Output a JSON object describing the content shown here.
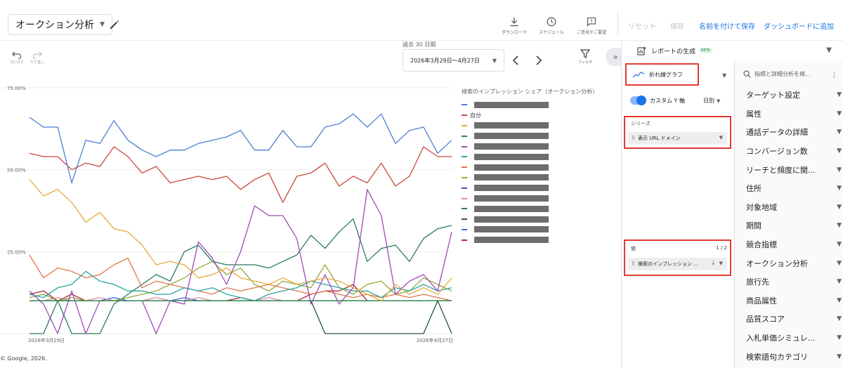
{
  "header": {
    "report_title": "オークション分析",
    "tools": [
      {
        "icon": "download-icon",
        "label": "ダウンロード"
      },
      {
        "icon": "schedule-icon",
        "label": "スケジュール"
      },
      {
        "icon": "feedback-icon",
        "label": "ご意見やご要望"
      }
    ],
    "actions": {
      "reset": "リセット",
      "save": "保存",
      "save_as": "名前を付けて保存",
      "add_to_dashboard": "ダッシュボードに追加"
    }
  },
  "toolbar": {
    "undo": "元に戻す",
    "redo": "やり直し",
    "date_caption": "過去 30 日間",
    "date_range": "2026年3月29日〜4月27日",
    "filter": "フィルタ"
  },
  "chart_data": {
    "type": "line",
    "title": "",
    "legend_title": "検索のインプレッション シェア（オークション分析）",
    "y_ticks": [
      "75.00%",
      "50.00%",
      "25.00%"
    ],
    "ylim": [
      0,
      75
    ],
    "x_start_label": "2026年3月29日",
    "x_end_label": "2026年4月27日",
    "series": [
      {
        "color": "#4a7fd4",
        "name_redacted": true,
        "values": [
          66,
          63,
          63,
          46,
          59,
          58,
          65,
          59,
          56,
          54,
          56,
          56,
          58,
          59,
          60,
          62,
          56,
          56,
          62,
          57,
          57,
          63,
          64,
          67,
          63,
          67,
          58,
          62,
          63,
          55,
          59
        ]
      },
      {
        "color": "#c9473a",
        "name": "自分",
        "values": [
          55,
          54,
          54,
          50,
          52,
          51,
          57,
          54,
          49,
          51,
          46,
          47,
          48,
          47,
          48,
          44,
          47,
          49,
          40,
          48,
          49,
          52,
          45,
          48,
          46,
          52,
          45,
          48,
          57,
          54,
          54
        ]
      },
      {
        "color": "#e8a83a",
        "name_redacted": true,
        "values": [
          47,
          42,
          44,
          40,
          34,
          37,
          32,
          31,
          27,
          21,
          22,
          21,
          17,
          18,
          20,
          17,
          16,
          15,
          17,
          15,
          16,
          17,
          16,
          14,
          12,
          10,
          15,
          12,
          14,
          12,
          17
        ]
      },
      {
        "color": "#2c8a4a",
        "name_redacted": true,
        "values": [
          10,
          10,
          10,
          10,
          10,
          10,
          10,
          10,
          10,
          10,
          10,
          10,
          10,
          10,
          10,
          10,
          10,
          10,
          10,
          10,
          10,
          10,
          10,
          10,
          10,
          10,
          10,
          10,
          10,
          10,
          10
        ]
      },
      {
        "color": "#a149b8",
        "name_redacted": true,
        "values": [
          13,
          9,
          0,
          13,
          0,
          10,
          10,
          10,
          10,
          0,
          10,
          9,
          28,
          23,
          15,
          25,
          39,
          36,
          36,
          29,
          9,
          18,
          9,
          14,
          44,
          36,
          12,
          16,
          18,
          13,
          31
        ]
      },
      {
        "color": "#28a5a0",
        "name_redacted": true,
        "values": [
          12,
          11,
          14,
          15,
          19,
          16,
          15,
          13,
          13,
          12,
          12,
          14,
          13,
          14,
          12,
          11,
          10,
          12,
          13,
          14,
          16,
          15,
          14,
          13,
          13,
          11,
          14,
          13,
          15,
          13,
          14
        ]
      },
      {
        "color": "#e0764c",
        "name_redacted": true,
        "values": [
          24,
          17,
          20,
          19,
          17,
          18,
          21,
          23,
          14,
          16,
          15,
          14,
          13,
          12,
          14,
          13,
          14,
          15,
          14,
          13,
          12,
          13,
          12,
          11,
          12,
          11,
          12,
          11,
          12,
          11,
          10
        ]
      },
      {
        "color": "#93a83a",
        "name_redacted": true,
        "values": [
          11,
          12,
          10,
          11,
          10,
          10,
          10,
          11,
          12,
          13,
          15,
          17,
          20,
          22,
          18,
          20,
          15,
          13,
          16,
          15,
          14,
          21,
          14,
          12,
          15,
          16,
          12,
          13,
          17,
          15,
          13
        ]
      },
      {
        "color": "#4b4fa8",
        "name_redacted": true,
        "values": [
          10,
          10,
          10,
          10,
          10,
          10,
          10,
          10,
          10,
          10,
          10,
          10,
          10,
          10,
          10,
          10,
          10,
          10,
          10,
          10,
          10,
          10,
          10,
          10,
          10,
          10,
          10,
          10,
          10,
          10,
          10
        ]
      },
      {
        "color": "#e08aa8",
        "name_redacted": true,
        "values": [
          10,
          10,
          11,
          10,
          10,
          11,
          10,
          10,
          10,
          11,
          10,
          10,
          11,
          10,
          10,
          10,
          10,
          11,
          10,
          10,
          10,
          10,
          10,
          10,
          10,
          10,
          10,
          10,
          10,
          10,
          10
        ]
      },
      {
        "color": "#2a7a5a",
        "name_redacted": true,
        "values": [
          0,
          0,
          10,
          0,
          0,
          0,
          9,
          12,
          15,
          18,
          16,
          25,
          27,
          22,
          21,
          21,
          21,
          20,
          22,
          24,
          30,
          26,
          31,
          35,
          22,
          26,
          27,
          22,
          29,
          32,
          33
        ]
      },
      {
        "color": "#1e5a3a",
        "name_redacted": true,
        "values": [
          10,
          10,
          10,
          10,
          10,
          10,
          10,
          10,
          10,
          10,
          10,
          10,
          10,
          10,
          10,
          10,
          10,
          10,
          10,
          10,
          10,
          0,
          0,
          0,
          0,
          0,
          0,
          0,
          0,
          10,
          0
        ]
      },
      {
        "color": "#3a6ad8",
        "name_redacted": true,
        "values": [
          10,
          10,
          10,
          10,
          10,
          10,
          11,
          10,
          10,
          10,
          10,
          11,
          10,
          10,
          10,
          10,
          10,
          10,
          10,
          10,
          10,
          10,
          10,
          10,
          10,
          10,
          10,
          10,
          10,
          10,
          10
        ]
      },
      {
        "color": "#a82a3a",
        "name_redacted": true,
        "values": [
          12,
          13,
          10,
          12,
          10,
          10,
          10,
          10,
          10,
          10,
          10,
          10,
          10,
          10,
          10,
          11,
          10,
          10,
          10,
          10,
          12,
          13,
          13,
          15,
          10,
          10,
          10,
          10,
          10,
          10,
          10
        ]
      }
    ]
  },
  "copyright": "© Google, 2026.",
  "panel": {
    "header": "レポートの生成",
    "beta": "BETA",
    "chart_type": "折れ線グラフ",
    "custom_y_axis": "カスタム Y 軸",
    "granularity": "日別",
    "series_title": "シリーズ",
    "series_chip": "表示 URL ドメイン",
    "values_title": "値",
    "values_count": "1 / 2",
    "values_chip": "検索のインプレッション ...",
    "search_placeholder": "指標と詳細分析を検...",
    "dimensions": [
      "ターゲット設定",
      "属性",
      "通話データの詳細",
      "コンバージョン数",
      "リーチと頻度に関...",
      "住所",
      "対象地域",
      "期間",
      "競合指標",
      "オークション分析",
      "旅行先",
      "商品属性",
      "品質スコア",
      "入札単価シミュレ...",
      "検索語句カテゴリ"
    ]
  }
}
